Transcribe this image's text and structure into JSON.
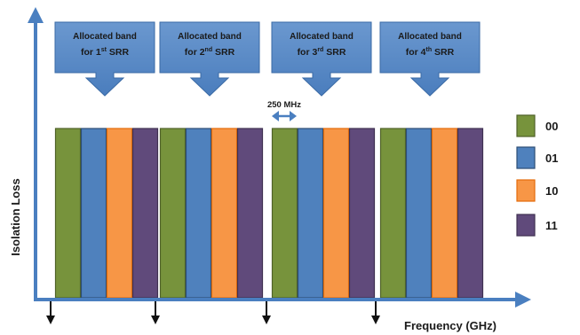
{
  "axes": {
    "y_label": "Isolation Loss",
    "x_label": "Frequency (GHz)",
    "axis_color": "#4a7fc0"
  },
  "callouts": [
    {
      "line1": "Allocated band",
      "line2_pre": "for 1",
      "sup": "st",
      "line2_post": " SRR"
    },
    {
      "line1": "Allocated band",
      "line2_pre": "for 2",
      "sup": "nd",
      "line2_post": " SRR"
    },
    {
      "line1": "Allocated band",
      "line2_pre": "for 3",
      "sup": "rd",
      "line2_post": " SRR"
    },
    {
      "line1": "Allocated band",
      "line2_pre": "for 4",
      "sup": "th",
      "line2_post": " SRR"
    }
  ],
  "bandwidth_marker": {
    "label": "250 MHz"
  },
  "codes": [
    {
      "code": "00",
      "color": "#77933c",
      "stroke": "#4f6228"
    },
    {
      "code": "01",
      "color": "#4f81bd",
      "stroke": "#2c4d75"
    },
    {
      "code": "10",
      "color": "#f79646",
      "stroke": "#e46c0a"
    },
    {
      "code": "11",
      "color": "#604a7b",
      "stroke": "#3f3151"
    }
  ],
  "band_groups": 4,
  "callout_color": "#4f81bd"
}
